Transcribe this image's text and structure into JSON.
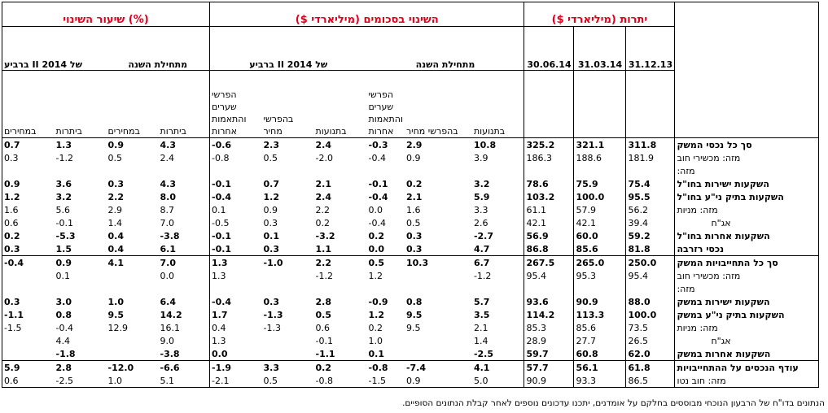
{
  "headers": {
    "rate_change": "שיעור השינוי (%)",
    "amount_change": "השינוי בסכומים (מיליארדי $)",
    "balances": "יתרות (מיליארדי $)",
    "q2_2014": "ברביע II של 2014",
    "since_year_start": "מתחילת השנה",
    "date_1": "30.06.14",
    "date_2": "31.03.14",
    "date_3": "31.12.13",
    "col_prices": "במחירים",
    "col_balances": "ביתרות",
    "col_fx_other": "הפרשי שערים והתאמות אחרות",
    "col_price_diff": "בהפרשי מחיר",
    "col_flows": "בתנועות"
  },
  "rows": [
    {
      "label": "סך כל נכסי המשק",
      "bold": true,
      "v": [
        "0.7",
        "1.3",
        "0.9",
        "4.3",
        "-0.6",
        "2.3",
        "2.4",
        "-0.3",
        "2.9",
        "10.8",
        "325.2",
        "321.1",
        "311.8"
      ]
    },
    {
      "label": "מזה: מכשירי חוב",
      "bold": false,
      "v": [
        "0.3",
        "-1.2",
        "0.5",
        "2.4",
        "-0.8",
        "0.5",
        "-2.0",
        "-0.4",
        "0.9",
        "3.9",
        "186.3",
        "188.6",
        "181.9"
      ]
    },
    {
      "label": "מזה:",
      "bold": false,
      "v": [
        "",
        "",
        "",
        "",
        "",
        "",
        "",
        "",
        "",
        "",
        "",
        "",
        ""
      ]
    },
    {
      "label": "השקעות ישירות בחו\"ל",
      "bold": true,
      "v": [
        "0.9",
        "3.6",
        "0.3",
        "4.3",
        "-0.1",
        "0.7",
        "2.1",
        "-0.1",
        "0.2",
        "3.2",
        "78.6",
        "75.9",
        "75.4"
      ]
    },
    {
      "label": "השקעות בתיק ני\"ע בחו\"ל",
      "bold": true,
      "v": [
        "1.2",
        "3.2",
        "2.2",
        "8.0",
        "-0.4",
        "1.2",
        "2.4",
        "-0.4",
        "2.1",
        "5.9",
        "103.2",
        "100.0",
        "95.5"
      ]
    },
    {
      "label": "מזה: מניות",
      "bold": false,
      "v": [
        "1.6",
        "5.6",
        "2.9",
        "8.7",
        "0.1",
        "0.9",
        "2.2",
        "0.0",
        "1.6",
        "3.3",
        "61.1",
        "57.9",
        "56.2"
      ]
    },
    {
      "label": "אג\"ח",
      "bold": false,
      "v": [
        "0.6",
        "-0.1",
        "1.4",
        "7.0",
        "-0.5",
        "0.3",
        "0.2",
        "-0.4",
        "0.5",
        "2.6",
        "42.1",
        "42.1",
        "39.4"
      ]
    },
    {
      "label": "השקעות אחרות בחו\"ל",
      "bold": true,
      "v": [
        "0.2",
        "-5.3",
        "0.4",
        "-3.8",
        "-0.1",
        "0.1",
        "-3.2",
        "0.2",
        "0.3",
        "-2.7",
        "56.9",
        "60.0",
        "59.2"
      ]
    },
    {
      "label": "נכסי רזרבה",
      "bold": true,
      "v": [
        "0.3",
        "1.5",
        "0.4",
        "6.1",
        "-0.1",
        "0.3",
        "1.1",
        "0.0",
        "0.3",
        "4.7",
        "86.8",
        "85.6",
        "81.8"
      ]
    },
    {
      "label": "סך כל התחייבויות המשק",
      "bold": true,
      "v": [
        "-0.4",
        "0.9",
        "4.1",
        "7.0",
        "1.3",
        "-1.0",
        "2.2",
        "0.5",
        "10.3",
        "6.7",
        "267.5",
        "265.0",
        "250.0"
      ]
    },
    {
      "label": "מזה: מכשירי חוב",
      "bold": false,
      "v": [
        "",
        "0.1",
        "",
        "0.0",
        "1.3",
        "",
        "-1.2",
        "1.2",
        "",
        "-1.2",
        "95.4",
        "95.3",
        "95.4"
      ]
    },
    {
      "label": "מזה:",
      "bold": false,
      "v": [
        "",
        "",
        "",
        "",
        "",
        "",
        "",
        "",
        "",
        "",
        "",
        "",
        ""
      ]
    },
    {
      "label": "השקעות ישירות במשק",
      "bold": true,
      "v": [
        "0.3",
        "3.0",
        "1.0",
        "6.4",
        "-0.4",
        "0.3",
        "2.8",
        "-0.9",
        "0.8",
        "5.7",
        "93.6",
        "90.9",
        "88.0"
      ]
    },
    {
      "label": "השקעות בתיק ני\"ע במשק",
      "bold": true,
      "v": [
        "-1.1",
        "0.8",
        "9.5",
        "14.2",
        "1.7",
        "-1.3",
        "0.5",
        "1.2",
        "9.5",
        "3.5",
        "114.2",
        "113.3",
        "100.0"
      ]
    },
    {
      "label": "מזה: מניות",
      "bold": false,
      "v": [
        "-1.5",
        "-0.4",
        "12.9",
        "16.1",
        "0.4",
        "-1.3",
        "0.6",
        "0.2",
        "9.5",
        "2.1",
        "85.3",
        "85.6",
        "73.5"
      ]
    },
    {
      "label": "אג\"ח",
      "bold": false,
      "v": [
        "",
        "4.4",
        "",
        "9.0",
        "1.3",
        "",
        "-0.1",
        "1.0",
        "",
        "1.4",
        "28.9",
        "27.7",
        "26.5"
      ]
    },
    {
      "label": "השקעות אחרות במשק",
      "bold": true,
      "v": [
        "",
        "-1.8",
        "",
        "-3.8",
        "0.0",
        "",
        "-1.1",
        "0.1",
        "",
        "-2.5",
        "59.7",
        "60.8",
        "62.0"
      ]
    },
    {
      "label": "עודף הנכסים על ההתחייבויות",
      "bold": true,
      "v": [
        "5.9",
        "2.8",
        "-12.0",
        "-6.6",
        "-1.9",
        "3.3",
        "0.2",
        "-0.8",
        "-7.4",
        "4.1",
        "57.7",
        "56.1",
        "61.8"
      ]
    },
    {
      "label": "מזה: חוב נטו",
      "bold": false,
      "v": [
        "0.6",
        "-2.5",
        "1.0",
        "5.1",
        "-2.1",
        "0.5",
        "-0.8",
        "-1.5",
        "0.9",
        "5.0",
        "90.9",
        "93.3",
        "86.5"
      ]
    }
  ],
  "footnote": "הנתונים בדו\"ח של הרבעון הנוכחי מבוססים בחלקם על אומדנים, יתכנו עדכונים נוספים לאחר קבלת הנתונים הסופיים."
}
